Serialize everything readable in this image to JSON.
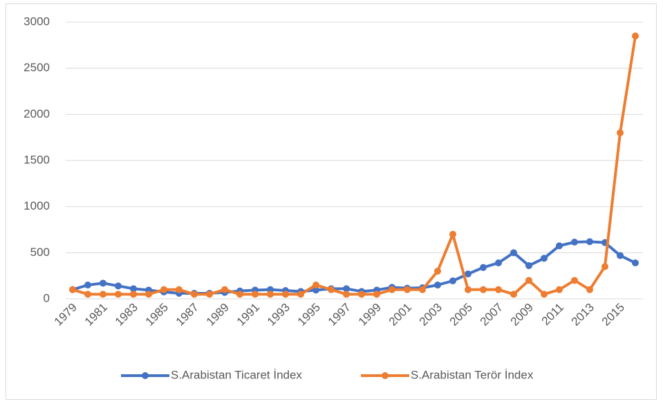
{
  "chart_data": {
    "type": "line",
    "categories": [
      "1979",
      null,
      "1981",
      null,
      "1983",
      null,
      "1985",
      null,
      "1987",
      null,
      "1989",
      null,
      "1991",
      null,
      "1993",
      null,
      "1995",
      null,
      "1997",
      null,
      "1999",
      null,
      "2001",
      null,
      "2003",
      null,
      "2005",
      null,
      "2007",
      null,
      "2009",
      null,
      "2011",
      null,
      "2013",
      null,
      "2015",
      null
    ],
    "series": [
      {
        "name": "S.Arabistan Ticaret İndex",
        "color": "#4472c4",
        "values": [
          100,
          150,
          170,
          140,
          110,
          95,
          75,
          60,
          60,
          60,
          70,
          85,
          95,
          100,
          90,
          80,
          95,
          110,
          110,
          80,
          95,
          125,
          115,
          120,
          150,
          195,
          270,
          340,
          390,
          500,
          360,
          440,
          575,
          615,
          620,
          610,
          470,
          390
        ]
      },
      {
        "name": "S.Arabistan Terör İndex",
        "color": "#ed7d31",
        "values": [
          100,
          50,
          50,
          50,
          50,
          50,
          100,
          100,
          50,
          50,
          100,
          50,
          50,
          50,
          50,
          50,
          150,
          100,
          50,
          50,
          50,
          100,
          100,
          100,
          300,
          700,
          100,
          100,
          100,
          50,
          200,
          50,
          100,
          200,
          100,
          350,
          1800,
          2850
        ]
      }
    ],
    "ylim": [
      0,
      3000
    ],
    "yticks": [
      0,
      500,
      1000,
      1500,
      2000,
      2500,
      3000
    ],
    "grid": true,
    "legend": "bottom"
  }
}
